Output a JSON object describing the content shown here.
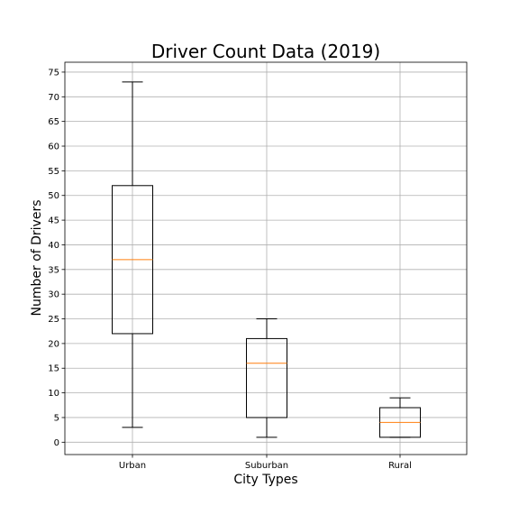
{
  "chart_data": {
    "type": "box",
    "title": "Driver Count Data (2019)",
    "xlabel": "City Types",
    "ylabel": "Number of Drivers",
    "ylim": [
      -2.5,
      77
    ],
    "yticks": [
      0,
      5,
      10,
      15,
      20,
      25,
      30,
      35,
      40,
      45,
      50,
      55,
      60,
      65,
      70,
      75
    ],
    "grid": true,
    "categories": [
      "Urban",
      "Suburban",
      "Rural"
    ],
    "boxes": [
      {
        "category": "Urban",
        "whisker_low": 3,
        "q1": 22,
        "median": 37,
        "q3": 52,
        "whisker_high": 73
      },
      {
        "category": "Suburban",
        "whisker_low": 1,
        "q1": 5,
        "median": 16,
        "q3": 21,
        "whisker_high": 25
      },
      {
        "category": "Rural",
        "whisker_low": 1,
        "q1": 1,
        "median": 4,
        "q3": 7,
        "whisker_high": 9
      }
    ],
    "colors": {
      "box": "#000000",
      "median": "#ff7f0e",
      "grid": "#b0b0b0"
    }
  }
}
